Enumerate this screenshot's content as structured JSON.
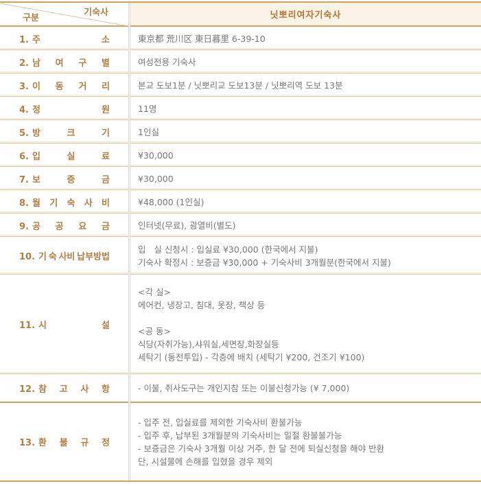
{
  "header": {
    "corner_top_label": "기숙사",
    "corner_bottom_label": "구분",
    "title": "닛뽀리여자기숙사"
  },
  "colors": {
    "accent_line": "#cfa05f",
    "header_bg": "#faf2e4",
    "label_text": "#b17f42",
    "value_text": "#787878",
    "diagonal_line": "#d9c5a7"
  },
  "rows": [
    {
      "num": "1.",
      "label_tokens": [
        "주",
        "소"
      ],
      "value_lines": [
        "東京都 荒川区 東日暮里 6-39-10"
      ]
    },
    {
      "num": "2.",
      "label_tokens": [
        "남",
        "여",
        "구",
        "별"
      ],
      "value_lines": [
        "여성전용 기숙사"
      ]
    },
    {
      "num": "3.",
      "label_tokens": [
        "이",
        "동",
        "거",
        "리"
      ],
      "value_lines": [
        "본교 도보1분 / 닛뽀리교 도보13분 / 닛뽀리역 도보 13분"
      ]
    },
    {
      "num": "4.",
      "label_tokens": [
        "정",
        "원"
      ],
      "value_lines": [
        "11명"
      ]
    },
    {
      "num": "5.",
      "label_tokens": [
        "방",
        "크",
        "기"
      ],
      "value_lines": [
        "1인실"
      ]
    },
    {
      "num": "6.",
      "label_tokens": [
        "입",
        "실",
        "료"
      ],
      "value_lines": [
        "¥30,000"
      ]
    },
    {
      "num": "7.",
      "label_tokens": [
        "보",
        "증",
        "금"
      ],
      "value_lines": [
        "¥30,000"
      ]
    },
    {
      "num": "8.",
      "label_tokens": [
        "월",
        "기",
        "숙",
        "사",
        "비"
      ],
      "value_lines": [
        "¥48,000 (1인실)"
      ]
    },
    {
      "num": "9.",
      "label_tokens": [
        "공",
        "공",
        "요",
        "금"
      ],
      "value_lines": [
        "인터넷(무료), 광열비(별도)"
      ]
    },
    {
      "num": "10.",
      "label_tokens": [
        "기",
        "숙",
        "사비",
        "납부방법"
      ],
      "value_lines": [
        "입   실 신청시 : 입실료 ¥30,000 (한국에서 지불)",
        "기숙사 확정시 : 보증금 ¥30,000 + 기숙사비 3개월분(한국에서 지불)"
      ]
    },
    {
      "num": "11.",
      "label_tokens": [
        "시",
        "설"
      ],
      "value_lines": [
        "<각 실>",
        "에어컨, 냉장고, 침대, 옷장, 책상 등",
        "",
        "<공 동>",
        "식당(자취가능),샤워실,세면장,화장실등",
        "세탁기 (동전투입) - 각층에 배치 (세탁기 ¥200, 건조기 ¥100)"
      ]
    },
    {
      "num": "12.",
      "label_tokens": [
        "참",
        "고",
        "사",
        "항"
      ],
      "value_lines": [
        "- 이불, 취사도구는 개인지참 또는 이불신청가능 (¥ 7,000)"
      ]
    },
    {
      "num": "13.",
      "label_tokens": [
        "환",
        "불",
        "규",
        "정"
      ],
      "value_lines": [
        "- 입주 전, 입실료를 제외한 기숙사비 환불가능",
        "- 입주 후, 납부된 3개월분의 기숙사비는 일절 환불불가능",
        "- 보증금은 기숙사 3개월 이상 거주, 한 달 전에 퇴실신청을 해야 반환",
        "단, 시설물에 손해를 입혔을 경우 제외"
      ]
    }
  ]
}
